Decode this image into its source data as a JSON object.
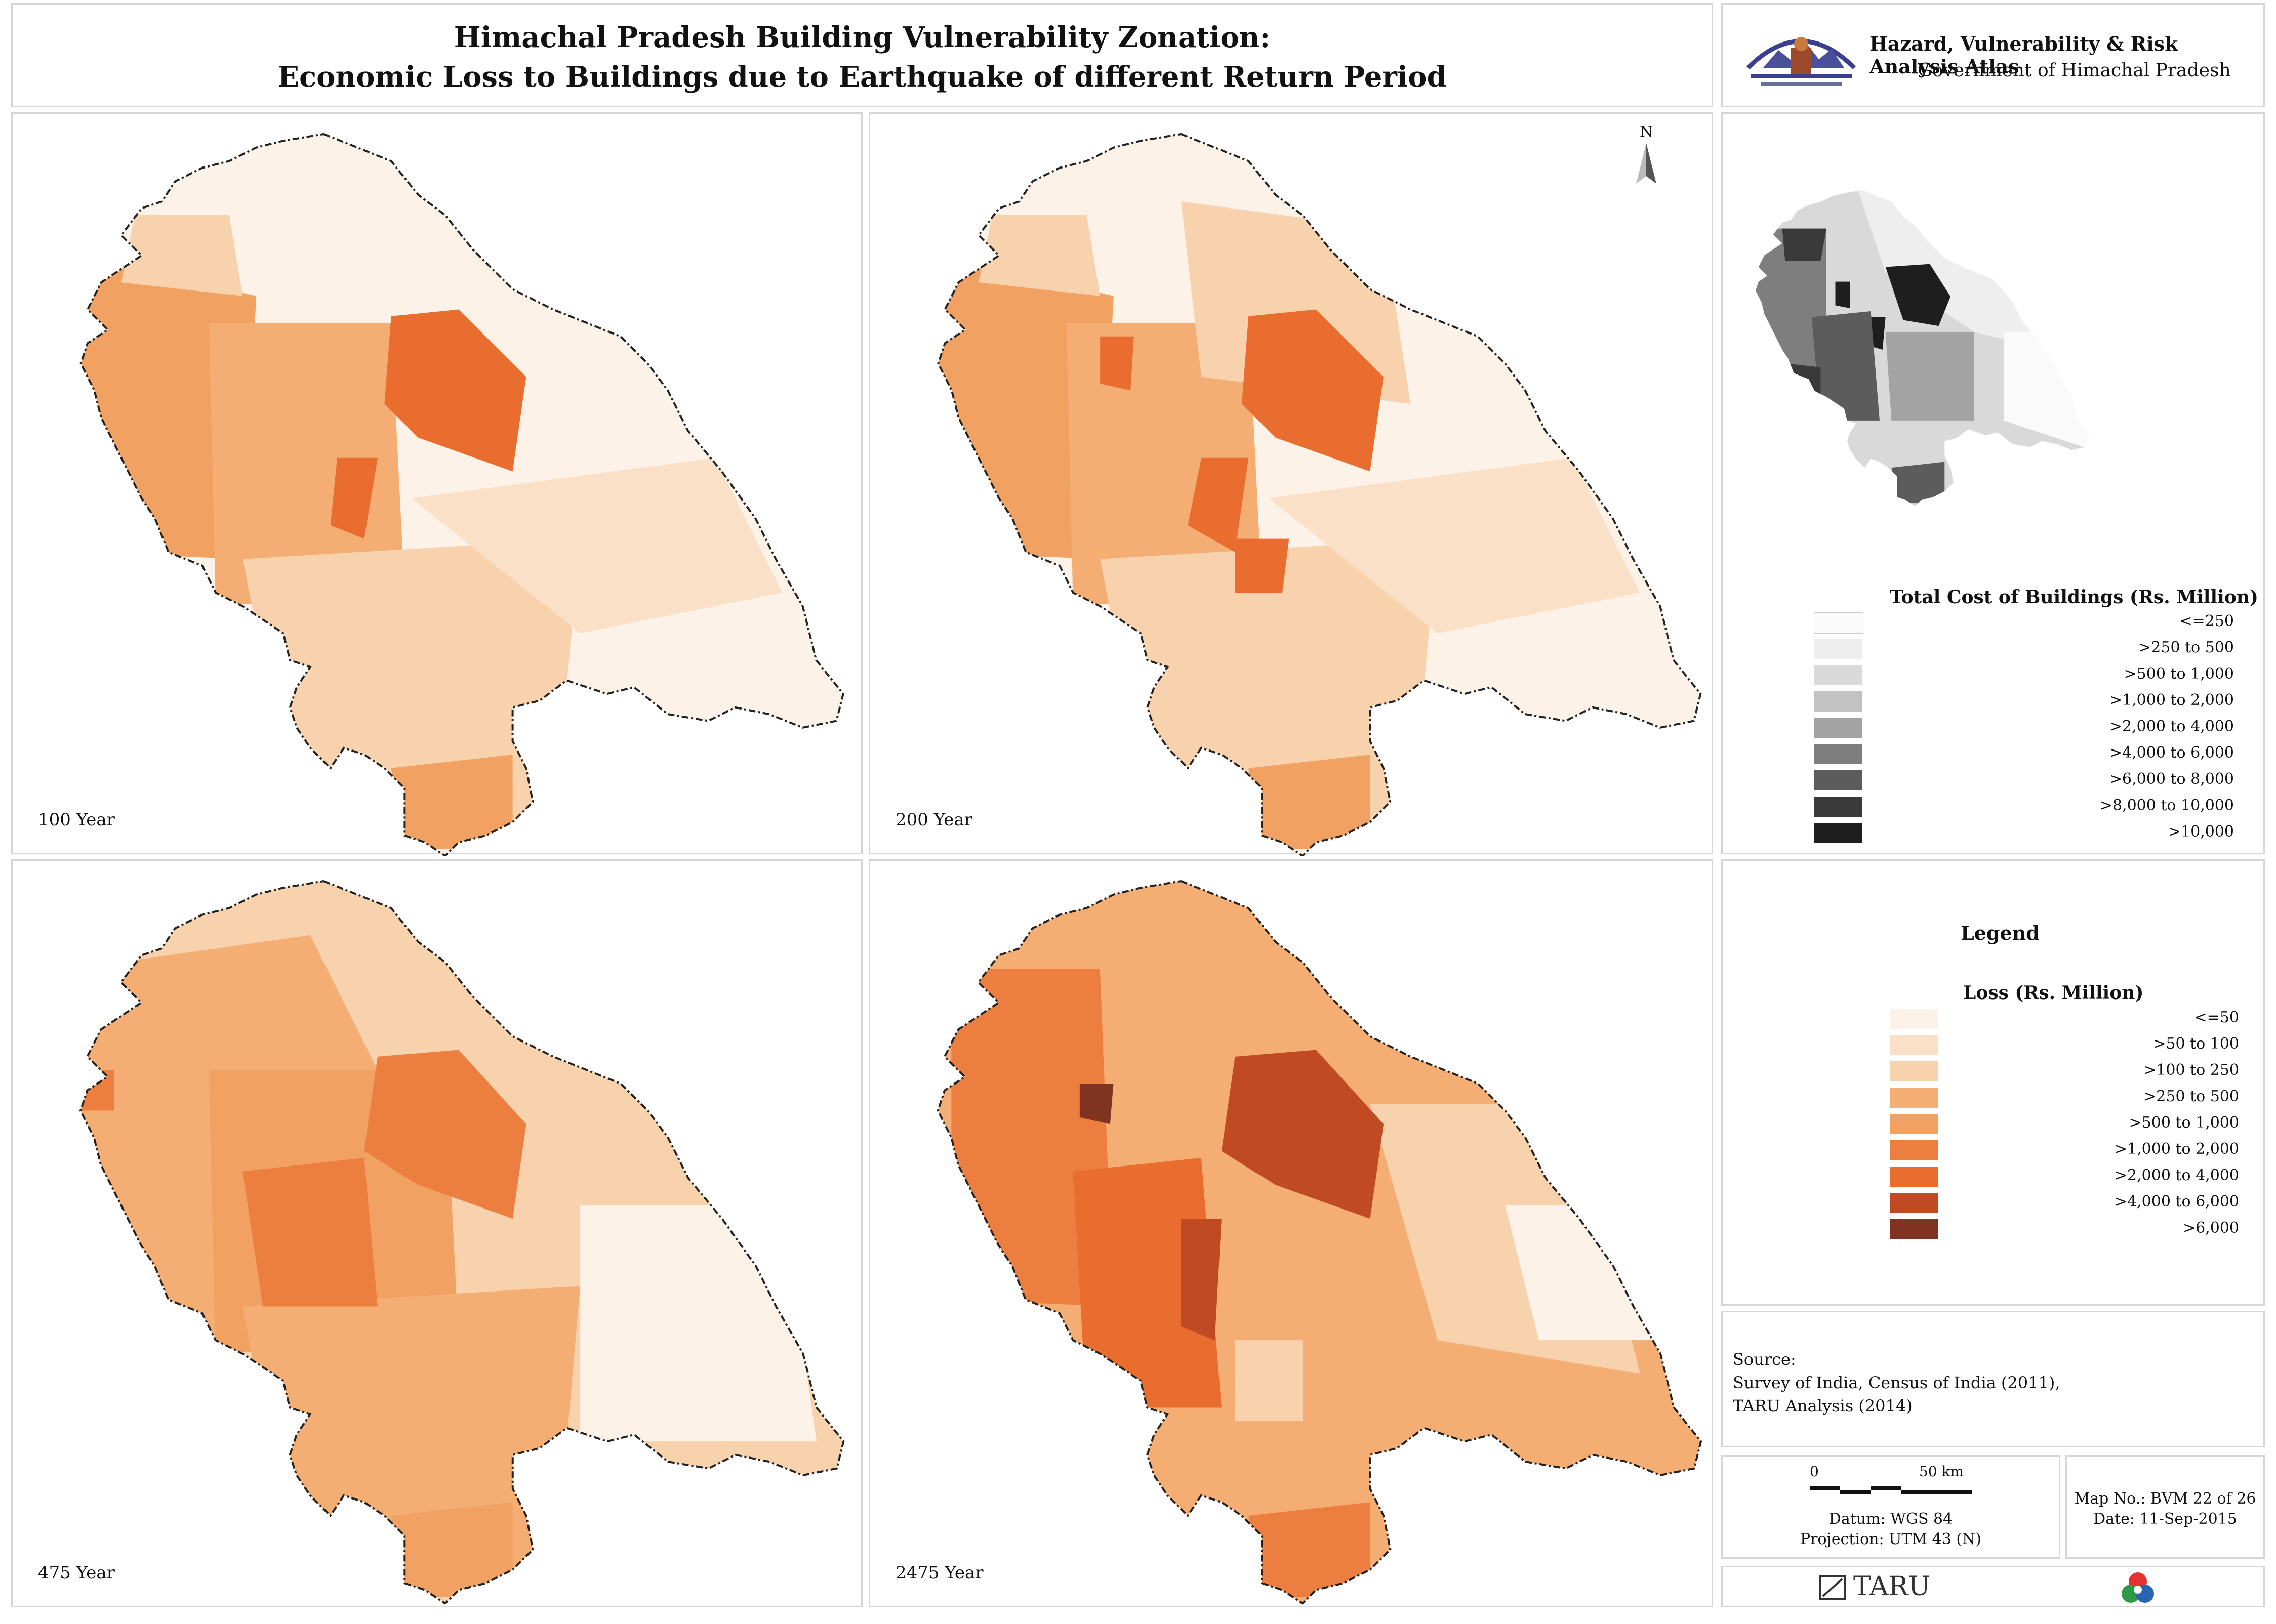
{
  "title": {
    "line1": "Himachal Pradesh Building Vulnerability Zonation:",
    "line2": "Economic Loss to Buildings due to Earthquake of different Return Period"
  },
  "header_right": {
    "atlas_title": "Hazard, Vulnerability & Risk Analysis Atlas",
    "gov": "Government of Himachal Pradesh"
  },
  "north_label": "N",
  "maps": [
    {
      "label": "100 Year"
    },
    {
      "label": "200 Year"
    },
    {
      "label": "475 Year"
    },
    {
      "label": "2475 Year"
    }
  ],
  "cost_legend": {
    "title": "Total Cost of Buildings (Rs. Million)",
    "items": [
      {
        "label": "<=250",
        "color": "#fafafa"
      },
      {
        "label": ">250 to 500",
        "color": "#eeeeee"
      },
      {
        "label": ">500 to 1,000",
        "color": "#d9d9d9"
      },
      {
        "label": ">1,000 to 2,000",
        "color": "#c2c2c2"
      },
      {
        "label": ">2,000 to 4,000",
        "color": "#a3a3a3"
      },
      {
        "label": ">4,000 to 6,000",
        "color": "#7e7e7e"
      },
      {
        "label": ">6,000 to 8,000",
        "color": "#5c5c5c"
      },
      {
        "label": ">8,000 to 10,000",
        "color": "#3a3a3a"
      },
      {
        "label": ">10,000",
        "color": "#1e1e1e"
      }
    ]
  },
  "loss_legend": {
    "heading": "Legend",
    "title": "Loss (Rs. Million)",
    "items": [
      {
        "label": "<=50",
        "color": "#fdf2e8"
      },
      {
        "label": ">50 to 100",
        "color": "#fbe0c8"
      },
      {
        "label": ">100 to 250",
        "color": "#f8d1ad"
      },
      {
        "label": ">250 to 500",
        "color": "#f4ad72"
      },
      {
        "label": ">500 to 1,000",
        "color": "#f1a262"
      },
      {
        "label": ">1,000 to 2,000",
        "color": "#ec7f3f"
      },
      {
        "label": ">2,000 to 4,000",
        "color": "#e86d2f"
      },
      {
        "label": ">4,000 to 6,000",
        "color": "#c04a22"
      },
      {
        "label": ">6,000",
        "color": "#7f3320"
      }
    ]
  },
  "source": {
    "heading": "Source:",
    "line1": "Survey of India, Census of India (2011),",
    "line2": "TARU Analysis (2014)"
  },
  "scale": {
    "zero": "0",
    "fifty": "50 km",
    "datum": "Datum: WGS 84",
    "projection": "Projection: UTM 43 (N)"
  },
  "map_info": {
    "map_no": "Map No.: BVM 22 of 26",
    "date": "Date: 11-Sep-2015"
  },
  "footer": {
    "taru": "TARU"
  }
}
